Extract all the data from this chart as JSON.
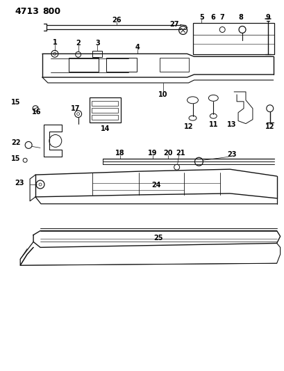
{
  "bg_color": "#ffffff",
  "line_color": "#111111",
  "text_color": "#000000",
  "fig_width": 4.1,
  "fig_height": 5.33,
  "dpi": 100
}
